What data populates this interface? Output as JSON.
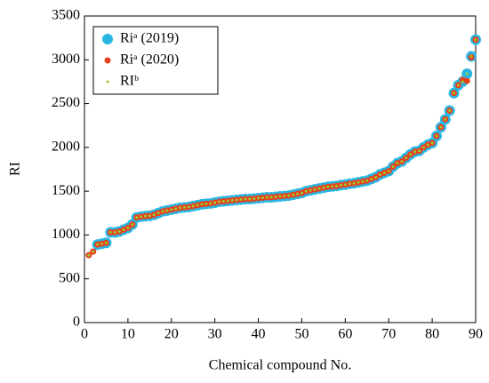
{
  "chart_data": {
    "type": "scatter",
    "x_label": "Chemical compound No.",
    "y_label": "RI",
    "xlim": [
      0,
      90
    ],
    "xticks": [
      0,
      10,
      20,
      30,
      40,
      50,
      60,
      70,
      80,
      90
    ],
    "ylim": [
      0,
      3500
    ],
    "yticks": [
      0,
      500,
      1000,
      1500,
      2000,
      2500,
      3000,
      3500
    ],
    "legend": "upper left",
    "x": [
      1,
      2,
      3,
      4,
      5,
      6,
      7,
      8,
      9,
      10,
      11,
      12,
      13,
      14,
      15,
      16,
      17,
      18,
      19,
      20,
      21,
      22,
      23,
      24,
      25,
      26,
      27,
      28,
      29,
      30,
      31,
      32,
      33,
      34,
      35,
      36,
      37,
      38,
      39,
      40,
      41,
      42,
      43,
      44,
      45,
      46,
      47,
      48,
      49,
      50,
      51,
      52,
      53,
      54,
      55,
      56,
      57,
      58,
      59,
      60,
      61,
      62,
      63,
      64,
      65,
      66,
      67,
      68,
      69,
      70,
      71,
      72,
      73,
      74,
      75,
      76,
      77,
      78,
      79,
      80,
      81,
      82,
      83,
      84,
      85,
      86,
      87,
      88,
      89,
      90
    ],
    "series": [
      {
        "name": "Riᵃ (2019)",
        "color": "#29b6e3",
        "size": 6,
        "values": [
          null,
          null,
          890,
          900,
          910,
          1030,
          1030,
          1040,
          1060,
          1080,
          1120,
          1200,
          1210,
          1215,
          1220,
          1230,
          1250,
          1270,
          1280,
          1290,
          1300,
          1310,
          1315,
          1320,
          1330,
          1340,
          1350,
          1355,
          1360,
          1370,
          1380,
          1385,
          1390,
          1395,
          1400,
          1405,
          1410,
          1410,
          1415,
          1420,
          1425,
          1430,
          1430,
          1435,
          1440,
          1445,
          1450,
          1460,
          1470,
          1480,
          1500,
          1510,
          1520,
          1530,
          1540,
          1550,
          1555,
          1560,
          1570,
          1575,
          1585,
          1590,
          1600,
          1610,
          1620,
          1640,
          1660,
          1690,
          1710,
          1730,
          1780,
          1820,
          1840,
          1880,
          1920,
          1950,
          1960,
          2000,
          2030,
          2050,
          2130,
          2230,
          2320,
          2420,
          2620,
          2710,
          2750,
          2840,
          3040,
          3230
        ]
      },
      {
        "name": "Riᵃ (2020)",
        "color": "#e8401c",
        "size": 3.5,
        "values": [
          770,
          810,
          890,
          900,
          910,
          1030,
          1030,
          1040,
          1060,
          1080,
          1120,
          1200,
          1210,
          1215,
          1220,
          1230,
          1250,
          1270,
          1280,
          1290,
          1300,
          1310,
          1315,
          1320,
          1330,
          1340,
          1350,
          1355,
          1360,
          1370,
          1380,
          1385,
          1390,
          1395,
          1400,
          1405,
          1410,
          1410,
          1415,
          1420,
          1425,
          1430,
          1430,
          1435,
          1440,
          1445,
          1450,
          1460,
          1470,
          1480,
          1500,
          1510,
          1520,
          1530,
          1540,
          1550,
          1555,
          1560,
          1570,
          1575,
          1585,
          1590,
          1600,
          1610,
          1620,
          1640,
          1660,
          1690,
          1710,
          1730,
          1780,
          1820,
          1840,
          1880,
          1920,
          1950,
          1960,
          2000,
          2030,
          2050,
          2130,
          2230,
          2320,
          2420,
          2620,
          2710,
          2770,
          2760,
          3030,
          3230
        ]
      },
      {
        "name": "RIᵇ",
        "color": "#9acd32",
        "size": 1.5,
        "values": [
          770,
          810,
          890,
          900,
          910,
          1030,
          1030,
          1040,
          1060,
          1080,
          1120,
          1200,
          1210,
          1215,
          1220,
          1230,
          1250,
          1270,
          1280,
          1290,
          1300,
          1310,
          1315,
          1320,
          1330,
          1340,
          1350,
          1355,
          1360,
          1370,
          1380,
          1385,
          1390,
          1395,
          1400,
          1405,
          1410,
          1410,
          1415,
          1420,
          1425,
          1430,
          1430,
          1435,
          1440,
          1445,
          1450,
          1460,
          1470,
          1480,
          1500,
          1510,
          1520,
          1530,
          1540,
          1550,
          1555,
          1560,
          1570,
          1575,
          1585,
          1590,
          1600,
          1610,
          1620,
          1640,
          1660,
          1690,
          1710,
          1730,
          1780,
          1820,
          1840,
          1880,
          1920,
          1950,
          1960,
          2000,
          2030,
          2050,
          2130,
          2230,
          2320,
          2420,
          2620,
          2710,
          2750,
          2840,
          3040,
          3230
        ]
      }
    ]
  }
}
